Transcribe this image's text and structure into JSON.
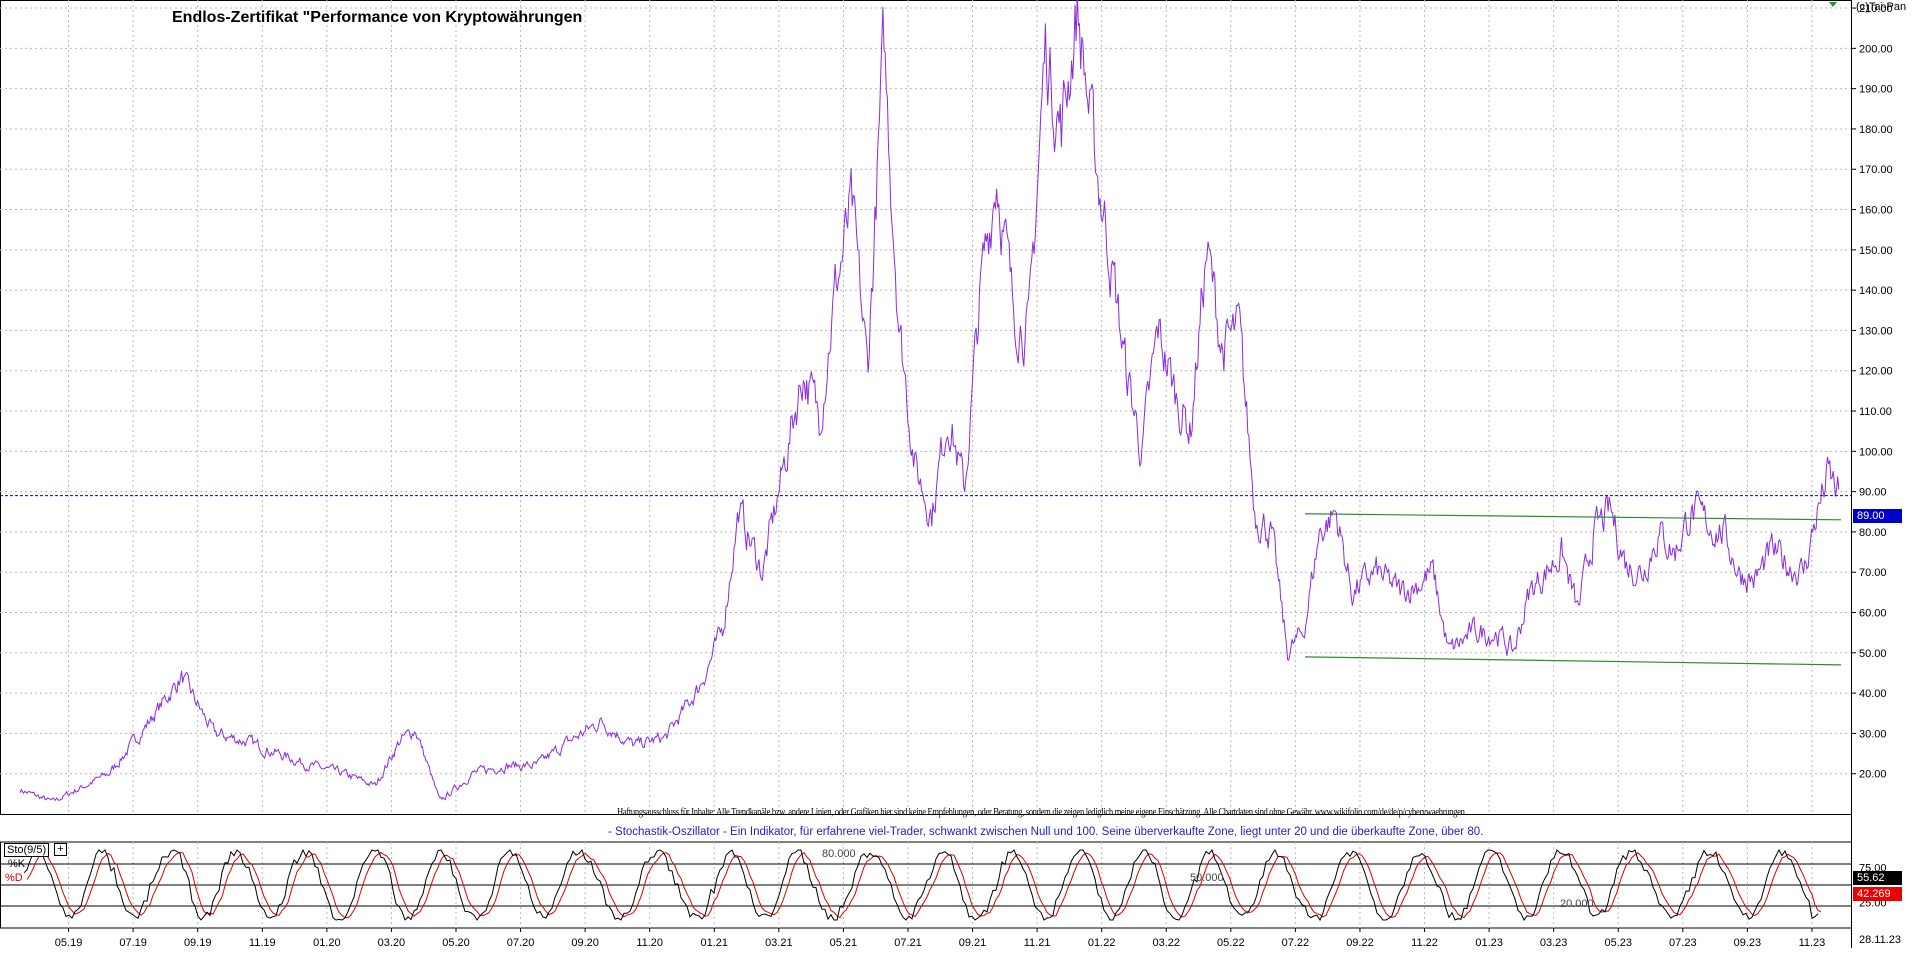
{
  "header": {
    "title": "Endlos-Zertifikat \"Performance von Kryptowährungen",
    "copyright": "(c)Tai-Pan"
  },
  "disclaimer": "Haftungsausschluss für Inhalte: Alle Trendkanäle bzw. andere Linien, oder Grafiken hier sind keine Empfehlungen, oder Beratung, sondern die zeigen lediglich meine eigene Einschätzung. Alle Chartdaten sind ohne Gewähr.  www.wikifolio.com/de/de/p/cybervwaehrungen",
  "oscillator": {
    "description": "- Stochastik-Oszillator - Ein Indikator, für erfahrene viel-Trader, schwankt zwischen Null und 100. Seine überverkaufte Zone, liegt unter 20 und die überkaufte Zone, über 80.",
    "label": "Sto(9/5)",
    "k_label": "%K",
    "d_label": "%D",
    "level_labels": [
      "80.000",
      "50.000",
      "20.000"
    ],
    "axis_ticks": [
      "75.00",
      "25.00"
    ],
    "k_value": "55.62",
    "d_value": "42.269"
  },
  "colors": {
    "price_line": "#8a2be2",
    "channel_lines": "#2e8b2e",
    "current_price_line": "#0000cc",
    "k_line": "#000000",
    "d_line": "#dd0000",
    "grid": "#b8b8b8"
  },
  "price": {
    "current_label": "89.00",
    "current_value": 89,
    "last_date": "28.11.23"
  },
  "chart_data": {
    "type": "line",
    "title": "Endlos-Zertifikat \"Performance von Kryptowährungen",
    "y_ticks": [
      "20.00",
      "30.00",
      "40.00",
      "50.00",
      "60.00",
      "70.00",
      "80.00",
      "90.00",
      "100.00",
      "110.00",
      "120.00",
      "130.00",
      "140.00",
      "150.00",
      "160.00",
      "170.00",
      "180.00",
      "190.00",
      "200.00",
      "210.00"
    ],
    "ylim": [
      10,
      212
    ],
    "x_tick_labels": [
      "05.19",
      "07.19",
      "09.19",
      "11.19",
      "01.20",
      "03.20",
      "05.20",
      "07.20",
      "09.20",
      "11.20",
      "01.21",
      "03.21",
      "05.21",
      "07.21",
      "09.21",
      "11.21",
      "01.22",
      "03.22",
      "05.22",
      "07.22",
      "09.22",
      "11.22",
      "01.23",
      "03.23",
      "05.23",
      "07.23",
      "09.23",
      "11.23"
    ],
    "grid": true,
    "series": [
      {
        "x": [
          "03.19",
          "04.19",
          "05.19",
          "06.19",
          "06.19",
          "07.19",
          "08.19",
          "09.19",
          "10.19",
          "11.19",
          "12.19",
          "01.20",
          "02.20",
          "03.20",
          "03.20",
          "04.20",
          "05.20",
          "06.20",
          "07.20",
          "08.20",
          "09.20",
          "10.20",
          "11.20",
          "12.20",
          "01.21",
          "01.21",
          "02.21",
          "03.21",
          "03.21",
          "04.21",
          "04.21",
          "05.21",
          "05.21",
          "06.21",
          "06.21",
          "07.21",
          "07.21",
          "08.21",
          "08.21",
          "09.21",
          "09.21",
          "10.21",
          "10.21",
          "11.21",
          "11.21",
          "12.21",
          "12.21",
          "01.22",
          "01.22",
          "02.22",
          "02.22",
          "03.22",
          "03.22",
          "04.22",
          "04.22",
          "05.22",
          "05.22",
          "06.22",
          "06.22",
          "07.22",
          "07.22",
          "08.22",
          "08.22",
          "09.22",
          "10.22",
          "10.22",
          "11.22",
          "11.22",
          "12.22",
          "01.23",
          "01.23",
          "02.23",
          "02.23",
          "03.23",
          "03.23",
          "04.23",
          "04.23",
          "05.23",
          "05.23",
          "06.23",
          "06.23",
          "07.23",
          "07.23",
          "08.23",
          "08.23",
          "09.23",
          "09.23",
          "10.23",
          "10.23",
          "11.23",
          "11.23",
          "11.23"
        ],
        "values": [
          16,
          13,
          17,
          20,
          25,
          33,
          44,
          30,
          28,
          25,
          22,
          20,
          17,
          28,
          31,
          13,
          20,
          22,
          22,
          28,
          33,
          27,
          29,
          41,
          55,
          85,
          70,
          100,
          120,
          108,
          140,
          160,
          120,
          200,
          130,
          95,
          85,
          110,
          90,
          140,
          170,
          135,
          130,
          200,
          180,
          210,
          175,
          150,
          120,
          100,
          130,
          115,
          105,
          150,
          125,
          130,
          85,
          80,
          50,
          55,
          80,
          85,
          65,
          70,
          65,
          67,
          70,
          50,
          55,
          55,
          50,
          65,
          70,
          75,
          60,
          80,
          85,
          72,
          70,
          80,
          75,
          85,
          82,
          80,
          70,
          68,
          75,
          72,
          70,
          85,
          94,
          89
        ]
      }
    ],
    "channel_upper": {
      "x": [
        "07.22",
        "11.23"
      ],
      "y": [
        84.5,
        83
      ]
    },
    "channel_lower": {
      "x": [
        "07.22",
        "11.23"
      ],
      "y": [
        49,
        47
      ]
    }
  }
}
